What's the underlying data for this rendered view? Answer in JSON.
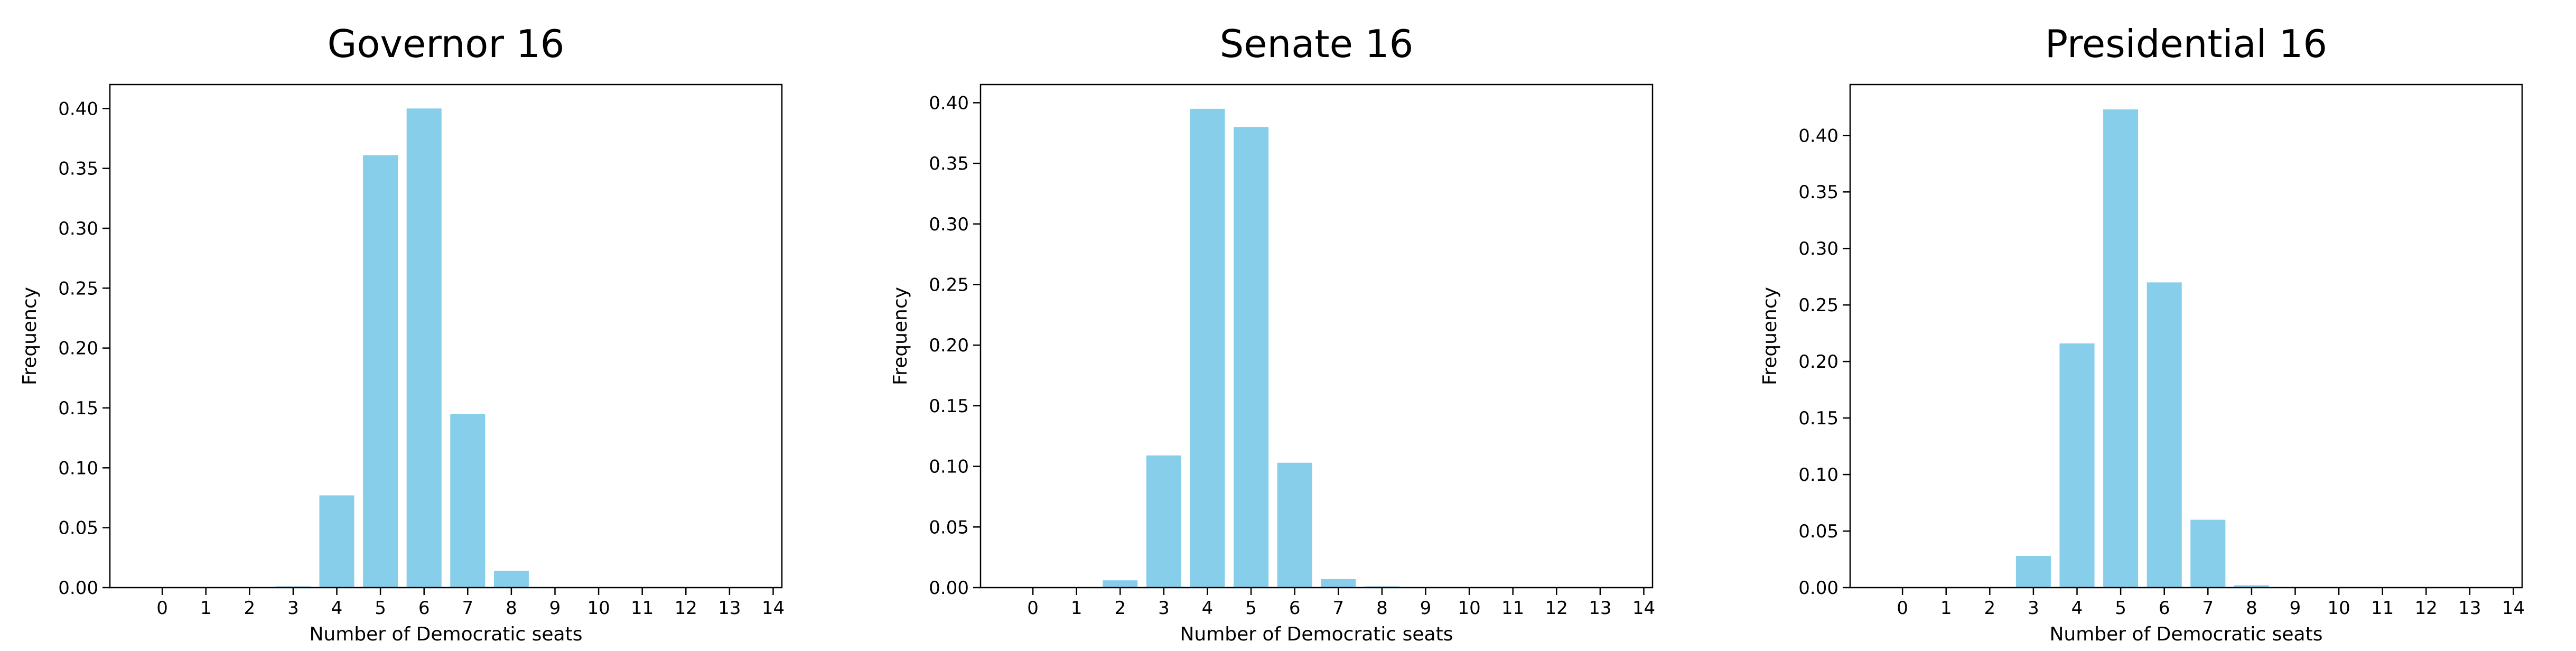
{
  "chart_data": [
    {
      "type": "bar",
      "title": "Governor 16",
      "xlabel": "Number of Democratic seats",
      "ylabel": "Frequency",
      "categories": [
        0,
        1,
        2,
        3,
        4,
        5,
        6,
        7,
        8,
        9,
        10,
        11,
        12,
        13,
        14
      ],
      "values": [
        0,
        0,
        0,
        0.001,
        0.077,
        0.361,
        0.4,
        0.145,
        0.014,
        0,
        0,
        0,
        0,
        0,
        0
      ],
      "ylim": [
        0,
        0.42
      ],
      "yticks": [
        "0.00",
        "0.05",
        "0.10",
        "0.15",
        "0.20",
        "0.25",
        "0.30",
        "0.35",
        "0.40"
      ],
      "color": "#87CEEB"
    },
    {
      "type": "bar",
      "title": "Senate 16",
      "xlabel": "Number of Democratic seats",
      "ylabel": "Frequency",
      "categories": [
        0,
        1,
        2,
        3,
        4,
        5,
        6,
        7,
        8,
        9,
        10,
        11,
        12,
        13,
        14
      ],
      "values": [
        0,
        0,
        0.006,
        0.109,
        0.395,
        0.38,
        0.103,
        0.007,
        0.001,
        0,
        0,
        0,
        0,
        0,
        0
      ],
      "ylim": [
        0,
        0.415
      ],
      "yticks": [
        "0.00",
        "0.05",
        "0.10",
        "0.15",
        "0.20",
        "0.25",
        "0.30",
        "0.35",
        "0.40"
      ],
      "color": "#87CEEB"
    },
    {
      "type": "bar",
      "title": "Presidential 16",
      "xlabel": "Number of Democratic seats",
      "ylabel": "Frequency",
      "categories": [
        0,
        1,
        2,
        3,
        4,
        5,
        6,
        7,
        8,
        9,
        10,
        11,
        12,
        13,
        14
      ],
      "values": [
        0,
        0,
        0,
        0.028,
        0.216,
        0.423,
        0.27,
        0.06,
        0.002,
        0,
        0,
        0,
        0,
        0,
        0
      ],
      "ylim": [
        0,
        0.445
      ],
      "yticks": [
        "0.00",
        "0.05",
        "0.10",
        "0.15",
        "0.20",
        "0.25",
        "0.30",
        "0.35",
        "0.40"
      ],
      "color": "#87CEEB"
    }
  ]
}
